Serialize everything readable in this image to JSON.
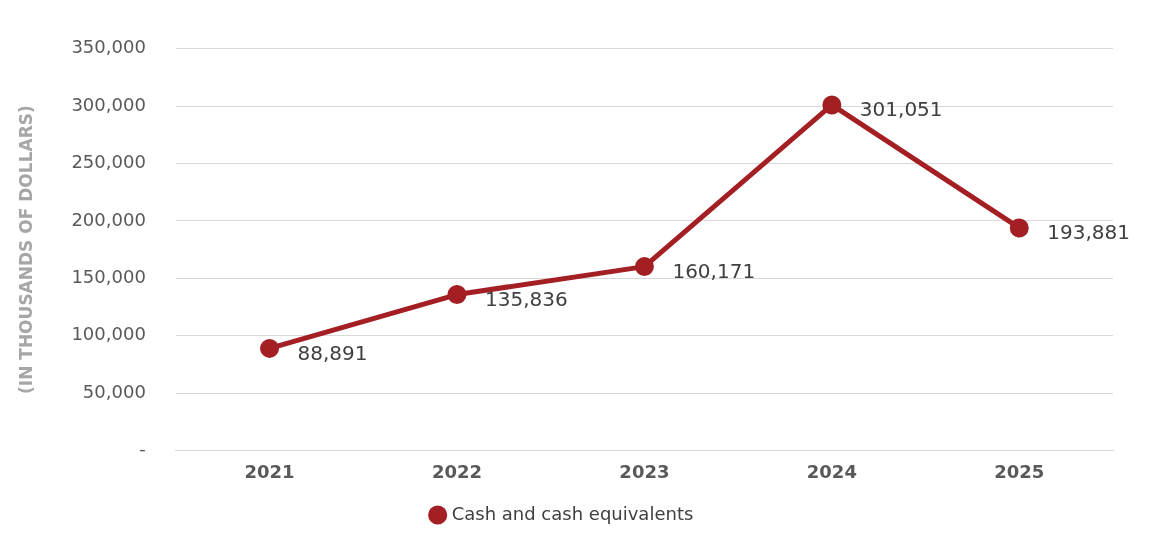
{
  "chart_data": {
    "type": "line",
    "ylabel": "(IN THOUSANDS OF DOLLARS)",
    "categories": [
      "2021",
      "2022",
      "2023",
      "2024",
      "2025"
    ],
    "series": [
      {
        "name": "Cash and cash equivalents",
        "color": "#a31f24",
        "values": [
          88891,
          135836,
          160171,
          301051,
          193881
        ],
        "value_labels": [
          "88,891",
          "135,836",
          "160,171",
          "301,051",
          "193,881"
        ]
      }
    ],
    "ylim": [
      0,
      350000
    ],
    "yticks": [
      {
        "value": 0,
        "label": "-"
      },
      {
        "value": 50000,
        "label": "50,000"
      },
      {
        "value": 100000,
        "label": "100,000"
      },
      {
        "value": 150000,
        "label": "150,000"
      },
      {
        "value": 200000,
        "label": "200,000"
      },
      {
        "value": 250000,
        "label": "250,000"
      },
      {
        "value": 300000,
        "label": "300,000"
      },
      {
        "value": 350000,
        "label": "350,000"
      }
    ],
    "grid": "y",
    "legend": "bottom",
    "marker": "circle",
    "line_style": "solid"
  }
}
